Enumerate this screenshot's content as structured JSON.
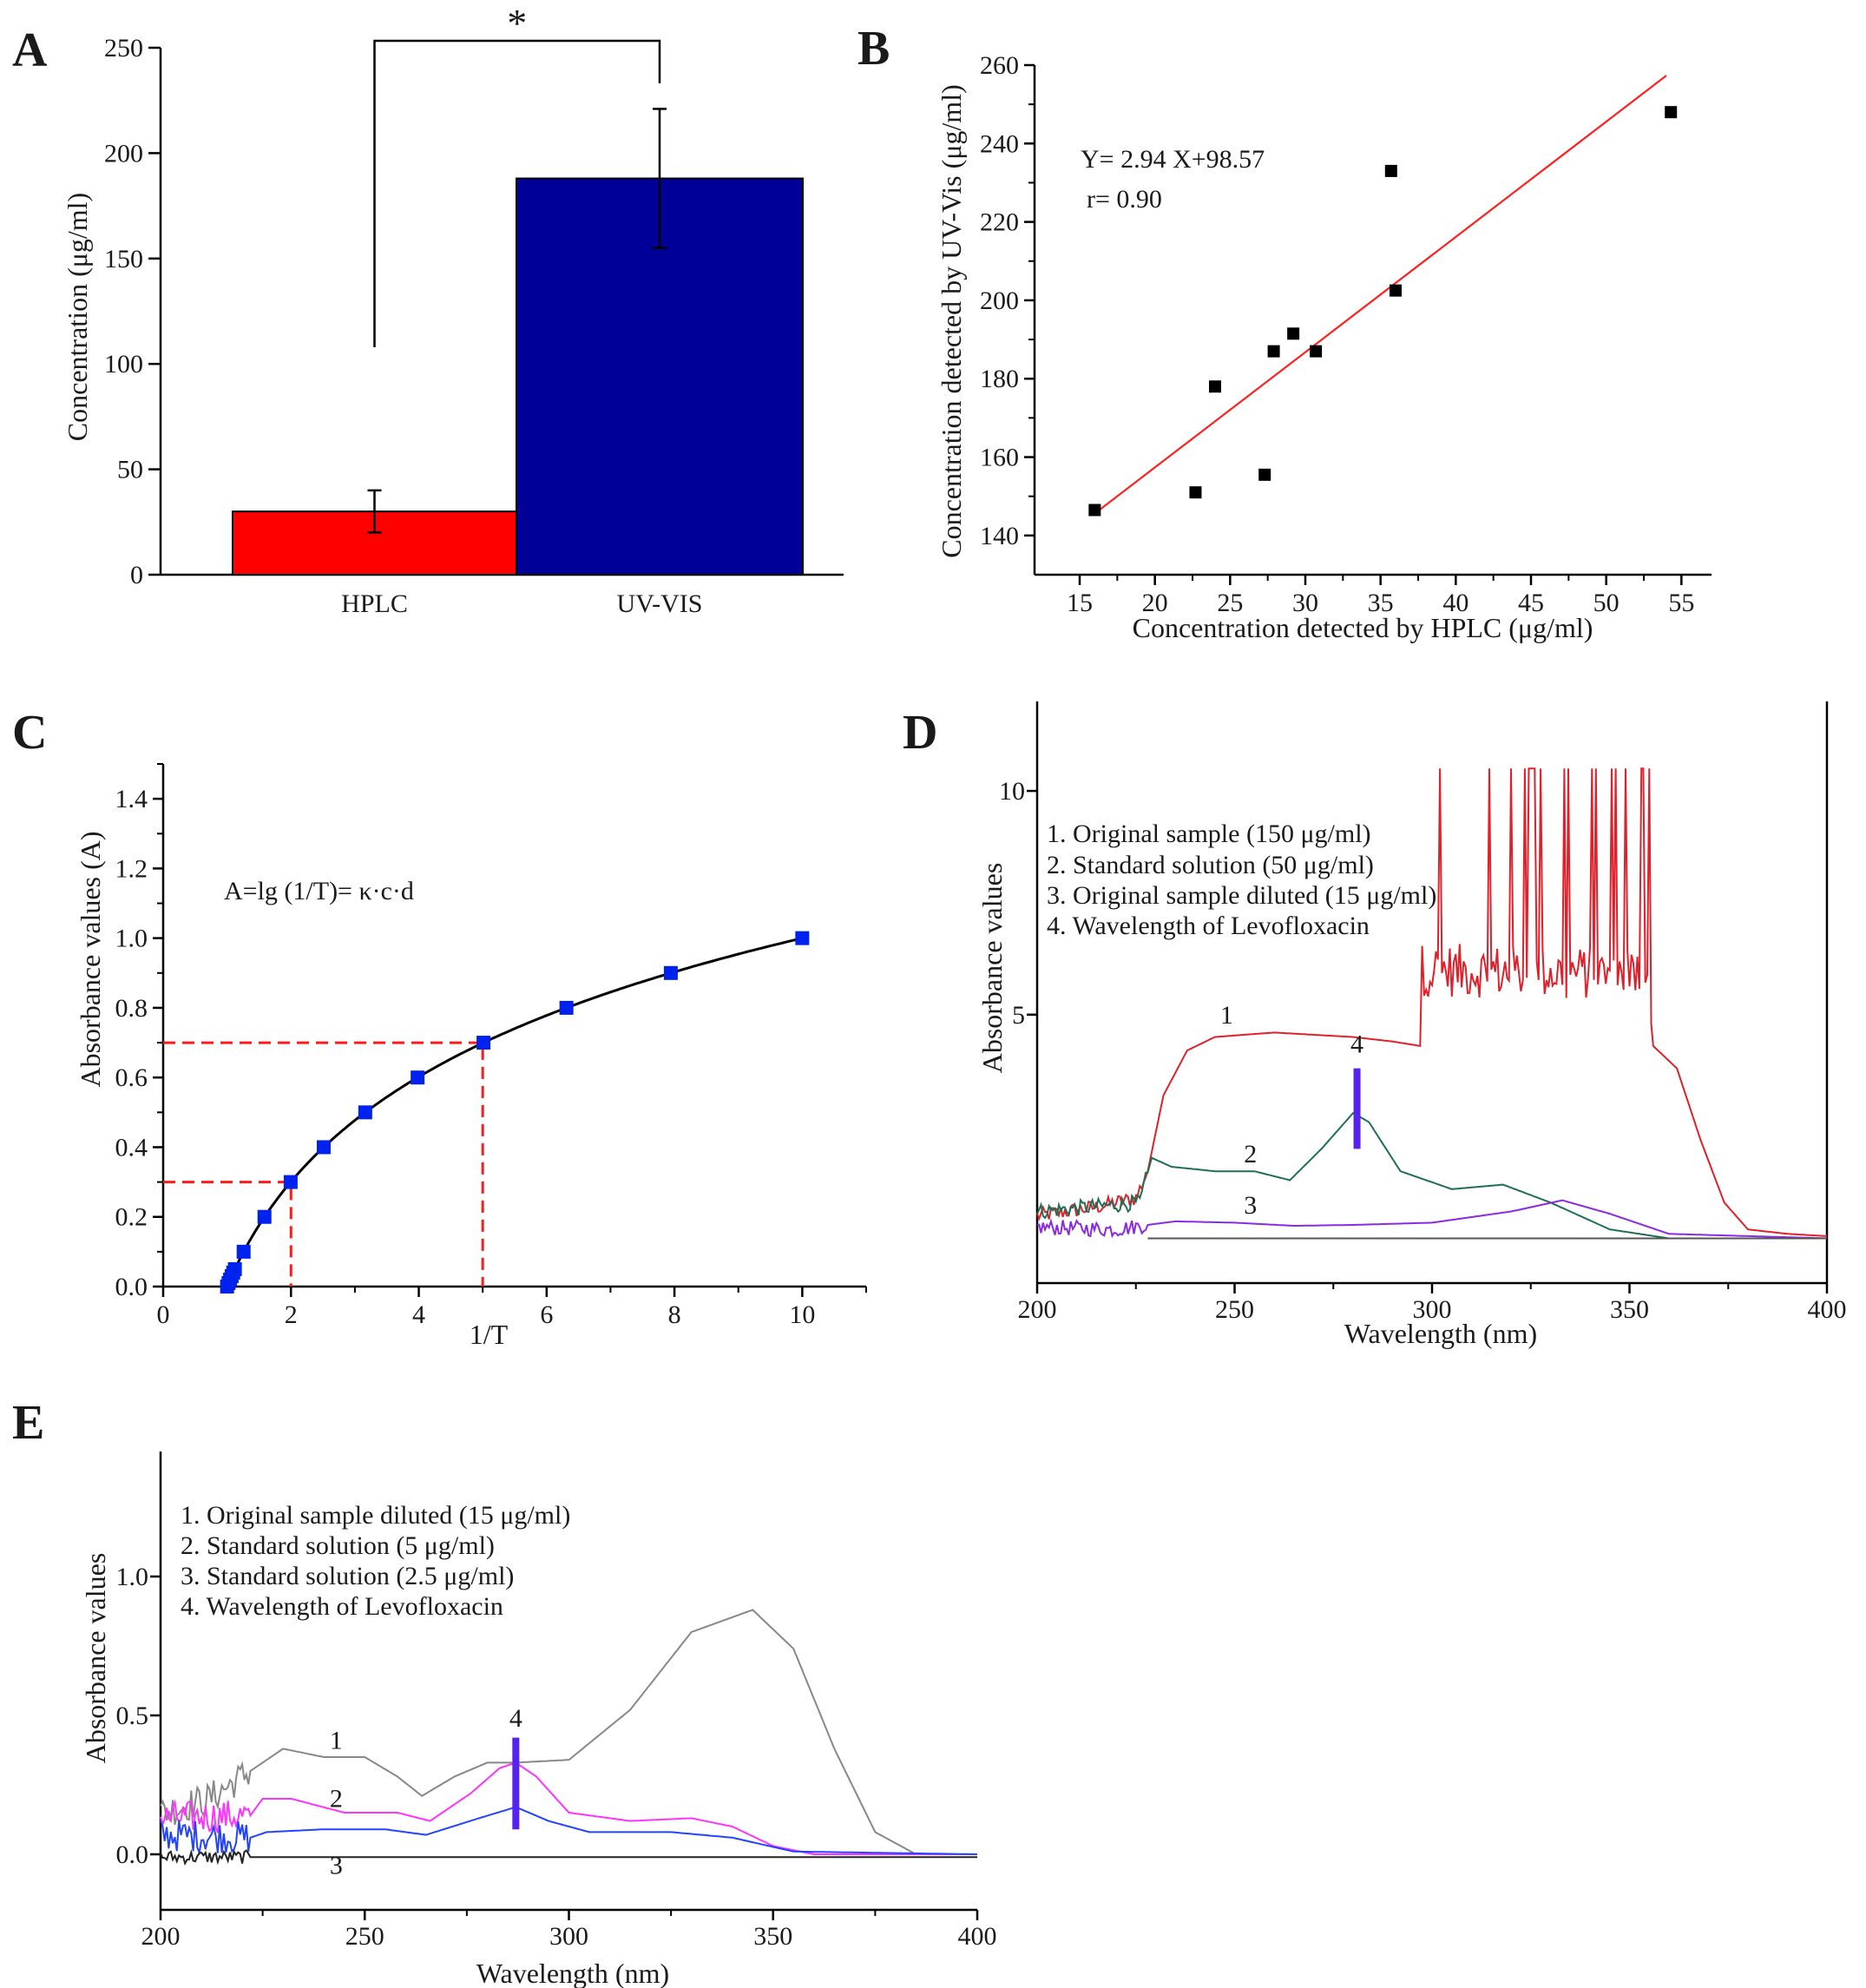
{
  "chart_data": [
    {
      "panel": "A",
      "type": "bar",
      "categories": [
        "HPLC",
        "UV-VIS"
      ],
      "values": [
        30,
        188
      ],
      "error": [
        10,
        33
      ],
      "colors": [
        "#ff0000",
        "#000099"
      ],
      "ylabel": "Concentration (μg/ml)",
      "xlabel": "",
      "ylim": [
        0,
        250
      ],
      "yticks": [
        "0",
        "50",
        "100",
        "150",
        "200",
        "250"
      ],
      "significance": "*",
      "grid": false
    },
    {
      "panel": "B",
      "type": "scatter",
      "xlabel": "Concentration detected by HPLC (μg/ml)",
      "ylabel": "Concentration detected by UV-Vis (μg/ml)",
      "xlim": [
        12,
        57
      ],
      "ylim": [
        130,
        260
      ],
      "xticks": [
        "15",
        "20",
        "25",
        "30",
        "35",
        "40",
        "45",
        "50",
        "55"
      ],
      "yticks": [
        "140",
        "160",
        "180",
        "200",
        "220",
        "240",
        "260"
      ],
      "points": [
        {
          "x": 16.0,
          "y": 146.5
        },
        {
          "x": 22.7,
          "y": 151.0
        },
        {
          "x": 24.0,
          "y": 178.0
        },
        {
          "x": 27.3,
          "y": 155.5
        },
        {
          "x": 27.9,
          "y": 187.0
        },
        {
          "x": 29.2,
          "y": 191.5
        },
        {
          "x": 30.7,
          "y": 187.0
        },
        {
          "x": 35.7,
          "y": 233.0
        },
        {
          "x": 36.0,
          "y": 202.5
        },
        {
          "x": 54.3,
          "y": 248.0
        }
      ],
      "fit": {
        "slope": 2.94,
        "intercept": 98.57,
        "x_range": [
          16,
          54
        ],
        "color": "#ff2020"
      },
      "annotations": [
        "Y= 2.94 X+98.57",
        "r= 0.90"
      ],
      "grid": false
    },
    {
      "panel": "C",
      "type": "line",
      "xlabel": "1/T",
      "ylabel": "Absorbance values (A)",
      "xlim": [
        0,
        11
      ],
      "ylim": [
        0,
        1.5
      ],
      "xticks": [
        "0",
        "2",
        "4",
        "6",
        "8",
        "10"
      ],
      "yticks": [
        "0.0",
        "0.2",
        "0.4",
        "0.6",
        "0.8",
        "1.0",
        "1.2",
        "1.4"
      ],
      "series": [
        {
          "values_x": [
            1.0,
            1.023,
            1.047,
            1.072,
            1.096,
            1.122,
            1.259,
            1.585,
            1.995,
            2.512,
            3.162,
            3.981,
            5.012,
            6.31,
            7.943,
            10.0
          ],
          "values_y": [
            0.0,
            0.01,
            0.02,
            0.03,
            0.04,
            0.05,
            0.1,
            0.2,
            0.3,
            0.4,
            0.5,
            0.6,
            0.7,
            0.8,
            0.9,
            1.0
          ],
          "line_color": "#000000",
          "marker_color": "#0022ee"
        }
      ],
      "guides": [
        {
          "x": 2,
          "y": 0.3
        },
        {
          "x": 5,
          "y": 0.7
        }
      ],
      "annotations": [
        "A=lg (1/T)= κ·c·d"
      ],
      "grid": false
    },
    {
      "panel": "D",
      "type": "line",
      "xlabel": "Wavelength (nm)",
      "ylabel": "Absorbance values",
      "xlim": [
        200,
        400
      ],
      "ylim": [
        -1,
        12
      ],
      "xticks": [
        "200",
        "250",
        "300",
        "350",
        "400"
      ],
      "yticks": [
        "5",
        "10"
      ],
      "legend": [
        "1. Original sample (150 μg/ml)",
        "2. Standard solution (50 μg/ml)",
        "3. Original sample diluted (15 μg/ml)",
        "4. Wavelength of Levofloxacin"
      ],
      "curve_labels": [
        "1",
        "2",
        "3",
        "4"
      ],
      "series": [
        {
          "name": "1",
          "color": "#e0202a",
          "x": [
            200,
            215,
            225,
            228,
            232,
            238,
            245,
            260,
            280,
            290,
            297,
            297.5,
            355,
            356,
            362,
            368,
            374,
            380,
            390,
            400
          ],
          "y": [
            0.5,
            0.7,
            0.9,
            1.5,
            3.2,
            4.2,
            4.5,
            4.6,
            4.5,
            4.4,
            4.3,
            5.4,
            5.3,
            4.3,
            3.8,
            2.2,
            0.8,
            0.2,
            0.1,
            0.05
          ],
          "noise_region": [
            297.5,
            355
          ],
          "noise_max": 10
        },
        {
          "name": "2",
          "color": "#1f6f55",
          "x": [
            200,
            220,
            226,
            229,
            234,
            245,
            255,
            264,
            272,
            280,
            284,
            292,
            305,
            318,
            330,
            345,
            360,
            400
          ],
          "y": [
            0.6,
            0.75,
            0.8,
            1.8,
            1.6,
            1.5,
            1.5,
            1.3,
            2.0,
            2.8,
            2.6,
            1.5,
            1.1,
            1.2,
            0.8,
            0.2,
            0.0,
            0.0
          ]
        },
        {
          "name": "3",
          "color": "#8a2be2",
          "x": [
            200,
            220,
            228,
            235,
            250,
            265,
            280,
            300,
            320,
            333,
            345,
            360,
            400
          ],
          "y": [
            0.25,
            0.2,
            0.3,
            0.38,
            0.35,
            0.28,
            0.3,
            0.35,
            0.6,
            0.85,
            0.55,
            0.1,
            0.0
          ]
        },
        {
          "name": "baseline",
          "color": "#555555",
          "x": [
            228,
            400
          ],
          "y": [
            0.0,
            0.0
          ]
        }
      ],
      "marker_line": {
        "x": 281,
        "y0": 2.0,
        "y1": 3.8,
        "color": "#5522ee"
      },
      "grid": false
    },
    {
      "panel": "E",
      "type": "line",
      "xlabel": "Wavelength (nm)",
      "ylabel": "Absorbance values",
      "xlim": [
        200,
        400
      ],
      "ylim": [
        -0.2,
        1.45
      ],
      "xticks": [
        "200",
        "250",
        "300",
        "350",
        "400"
      ],
      "yticks": [
        "0.0",
        "0.5",
        "1.0"
      ],
      "legend": [
        "1. Original sample diluted (15 μg/ml)",
        "2. Standard solution (5 μg/ml)",
        "3. Standard solution (2.5 μg/ml)",
        "4. Wavelength of Levofloxacin"
      ],
      "curve_labels": [
        "1",
        "2",
        "3",
        "4"
      ],
      "series": [
        {
          "name": "1",
          "color": "#888888",
          "x": [
            200,
            212,
            222,
            230,
            240,
            250,
            258,
            264,
            272,
            280,
            287,
            300,
            315,
            330,
            345,
            355,
            365,
            375,
            385,
            400
          ],
          "y": [
            0.15,
            0.2,
            0.3,
            0.38,
            0.35,
            0.35,
            0.28,
            0.21,
            0.28,
            0.33,
            0.33,
            0.34,
            0.52,
            0.8,
            0.88,
            0.74,
            0.38,
            0.08,
            0.0,
            0.0
          ]
        },
        {
          "name": "2",
          "color": "#ff33ff",
          "x": [
            200,
            222,
            225,
            232,
            245,
            258,
            266,
            276,
            283,
            287,
            292,
            300,
            315,
            330,
            340,
            350,
            360,
            400
          ],
          "y": [
            0.13,
            0.14,
            0.2,
            0.2,
            0.15,
            0.15,
            0.12,
            0.22,
            0.31,
            0.33,
            0.28,
            0.15,
            0.12,
            0.13,
            0.1,
            0.03,
            0.0,
            0.0
          ]
        },
        {
          "name": "3",
          "color": "#2244ff",
          "x": [
            200,
            222,
            226,
            240,
            255,
            265,
            278,
            287,
            295,
            305,
            325,
            340,
            355,
            400
          ],
          "y": [
            0.07,
            0.06,
            0.08,
            0.09,
            0.09,
            0.07,
            0.13,
            0.17,
            0.12,
            0.08,
            0.08,
            0.06,
            0.01,
            0.0
          ]
        },
        {
          "name": "4-base",
          "color": "#222222",
          "x": [
            200,
            400
          ],
          "y": [
            -0.01,
            -0.01
          ]
        }
      ],
      "marker_line": {
        "x": 287,
        "y0": 0.09,
        "y1": 0.42,
        "color": "#5522ee"
      },
      "grid": false
    }
  ]
}
